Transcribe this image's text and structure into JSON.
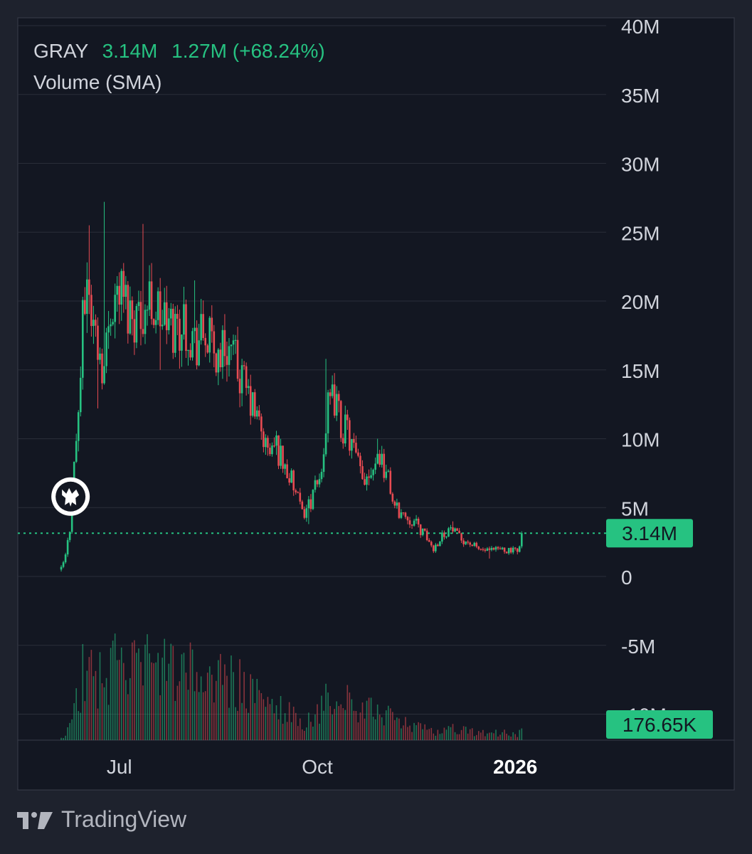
{
  "legend": {
    "symbol": "GRAY",
    "price": "3.14M",
    "change": "1.27M (+68.24%)",
    "indicator": "Volume (SMA)"
  },
  "price_badge": "3.14M",
  "volume_badge": "176.65K",
  "footer": {
    "brand": "TradingView"
  },
  "colors": {
    "background": "#1e222d",
    "panel": "#131722",
    "up": "#26c281",
    "down": "#e74b52",
    "badge": "#26c281",
    "grid": "#2a2e39"
  },
  "icons": {
    "marker": "eagle-icon",
    "logo": "tradingview-logo-icon"
  },
  "chart_data": {
    "type": "candlestick",
    "y_ticks": [
      "40M",
      "35M",
      "30M",
      "25M",
      "20M",
      "15M",
      "10M",
      "5M",
      "0",
      "-5M",
      "-10M"
    ],
    "y_tick_values": [
      40,
      35,
      30,
      25,
      20,
      15,
      10,
      5,
      0,
      -5,
      -10
    ],
    "ylim": [
      -11.5,
      41
    ],
    "x_ticks": [
      {
        "label": "Jul",
        "date": "2025-07-01",
        "bold": false
      },
      {
        "label": "Oct",
        "date": "2025-10-01",
        "bold": false
      },
      {
        "label": "2026",
        "date": "2026-01-01",
        "bold": true
      }
    ],
    "xlim": [
      "2025-06-02",
      "2026-02-01"
    ],
    "last_value": 3.14,
    "last_volume": "176.65K",
    "marker_date": "2025-06-08",
    "marker_value": 5.8,
    "close_path": [
      [
        "2025-06-04",
        0.5
      ],
      [
        "2025-06-06",
        1.5
      ],
      [
        "2025-06-08",
        3.5
      ],
      [
        "2025-06-10",
        8
      ],
      [
        "2025-06-12",
        12
      ],
      [
        "2025-06-14",
        18
      ],
      [
        "2025-06-16",
        22
      ],
      [
        "2025-06-18",
        19
      ],
      [
        "2025-06-21",
        17
      ],
      [
        "2025-06-24",
        15
      ],
      [
        "2025-06-27",
        20
      ],
      [
        "2025-07-01",
        21
      ],
      [
        "2025-07-05",
        19.5
      ],
      [
        "2025-07-10",
        19
      ],
      [
        "2025-07-15",
        20
      ],
      [
        "2025-07-20",
        19
      ],
      [
        "2025-07-25",
        18
      ],
      [
        "2025-08-01",
        18.5
      ],
      [
        "2025-08-05",
        17
      ],
      [
        "2025-08-10",
        17.5
      ],
      [
        "2025-08-15",
        16
      ],
      [
        "2025-08-20",
        17
      ],
      [
        "2025-08-25",
        15
      ],
      [
        "2025-08-30",
        13
      ],
      [
        "2025-09-04",
        11
      ],
      [
        "2025-09-08",
        9
      ],
      [
        "2025-09-12",
        9.5
      ],
      [
        "2025-09-16",
        8
      ],
      [
        "2025-09-20",
        6.5
      ],
      [
        "2025-09-24",
        4.5
      ],
      [
        "2025-09-28",
        5.5
      ],
      [
        "2025-10-02",
        7
      ],
      [
        "2025-10-06",
        12
      ],
      [
        "2025-10-09",
        13
      ],
      [
        "2025-10-12",
        11
      ],
      [
        "2025-10-15",
        10.5
      ],
      [
        "2025-10-18",
        9
      ],
      [
        "2025-10-22",
        7
      ],
      [
        "2025-10-26",
        8
      ],
      [
        "2025-10-30",
        9
      ],
      [
        "2025-11-03",
        7
      ],
      [
        "2025-11-06",
        5
      ],
      [
        "2025-11-10",
        4.5
      ],
      [
        "2025-11-15",
        4
      ],
      [
        "2025-11-20",
        3
      ],
      [
        "2025-11-24",
        2
      ],
      [
        "2025-11-28",
        3
      ],
      [
        "2025-12-02",
        3.5
      ],
      [
        "2025-12-06",
        2.8
      ],
      [
        "2025-12-10",
        2.5
      ],
      [
        "2025-12-15",
        2
      ],
      [
        "2025-12-20",
        1.8
      ],
      [
        "2025-12-25",
        2
      ],
      [
        "2025-12-29",
        1.9
      ],
      [
        "2026-01-02",
        1.8
      ],
      [
        "2026-01-04",
        3.14
      ]
    ],
    "peaks": [
      [
        "2025-06-17",
        25.5
      ],
      [
        "2025-06-24",
        27.2
      ],
      [
        "2025-07-12",
        25.6
      ],
      [
        "2025-08-05",
        21.5
      ],
      [
        "2025-10-05",
        15.8
      ],
      [
        "2025-10-29",
        10
      ],
      [
        "2025-12-03",
        4
      ],
      [
        "2026-01-04",
        3.14
      ]
    ],
    "troughs": [
      [
        "2025-06-21",
        12.2
      ],
      [
        "2025-07-20",
        15
      ],
      [
        "2025-09-27",
        3.8
      ],
      [
        "2025-11-24",
        1.7
      ],
      [
        "2025-12-20",
        1.3
      ],
      [
        "2026-01-02",
        1.6
      ]
    ]
  }
}
